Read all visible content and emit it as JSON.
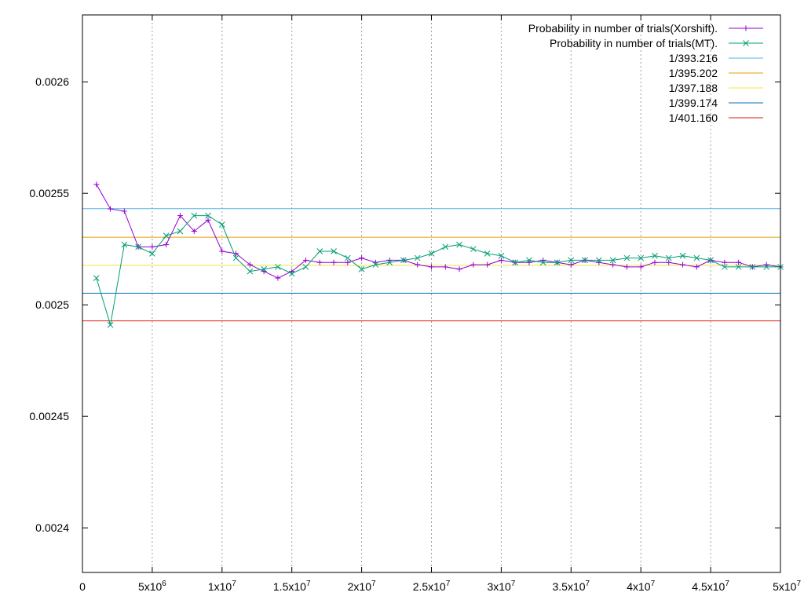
{
  "chart_data": {
    "type": "line",
    "title": "",
    "xlabel": "",
    "ylabel": "",
    "xlim": [
      0,
      50000000
    ],
    "ylim": [
      0.00238,
      0.00263
    ],
    "grid": "vertical dashed at x ticks",
    "legend_position": "top-right",
    "x_ticks": [
      {
        "value": 0,
        "base": "0",
        "exp": ""
      },
      {
        "value": 5000000,
        "base": "5x10",
        "exp": "6"
      },
      {
        "value": 10000000,
        "base": "1x10",
        "exp": "7"
      },
      {
        "value": 15000000,
        "base": "1.5x10",
        "exp": "7"
      },
      {
        "value": 20000000,
        "base": "2x10",
        "exp": "7"
      },
      {
        "value": 25000000,
        "base": "2.5x10",
        "exp": "7"
      },
      {
        "value": 30000000,
        "base": "3x10",
        "exp": "7"
      },
      {
        "value": 35000000,
        "base": "3.5x10",
        "exp": "7"
      },
      {
        "value": 40000000,
        "base": "4x10",
        "exp": "7"
      },
      {
        "value": 45000000,
        "base": "4.5x10",
        "exp": "7"
      },
      {
        "value": 50000000,
        "base": "5x10",
        "exp": "7"
      }
    ],
    "y_ticks": [
      {
        "value": 0.0024,
        "label": "0.0024"
      },
      {
        "value": 0.00245,
        "label": "0.00245"
      },
      {
        "value": 0.0025,
        "label": "0.0025"
      },
      {
        "value": 0.00255,
        "label": "0.00255"
      },
      {
        "value": 0.0026,
        "label": "0.0026"
      }
    ],
    "x": [
      1000000,
      2000000,
      3000000,
      4000000,
      5000000,
      6000000,
      7000000,
      8000000,
      9000000,
      10000000,
      11000000,
      12000000,
      13000000,
      14000000,
      15000000,
      16000000,
      17000000,
      18000000,
      19000000,
      20000000,
      21000000,
      22000000,
      23000000,
      24000000,
      25000000,
      26000000,
      27000000,
      28000000,
      29000000,
      30000000,
      31000000,
      32000000,
      33000000,
      34000000,
      35000000,
      36000000,
      37000000,
      38000000,
      39000000,
      40000000,
      41000000,
      42000000,
      43000000,
      44000000,
      45000000,
      46000000,
      47000000,
      48000000,
      49000000,
      50000000
    ],
    "series": [
      {
        "name": "Probability in number of trials(Xorshift).",
        "color": "#9400d3",
        "marker": "plus",
        "values": [
          0.002554,
          0.002543,
          0.002542,
          0.002526,
          0.002526,
          0.002527,
          0.00254,
          0.002533,
          0.002538,
          0.002524,
          0.002523,
          0.002518,
          0.002515,
          0.002512,
          0.002515,
          0.00252,
          0.002519,
          0.002519,
          0.002519,
          0.002521,
          0.002519,
          0.00252,
          0.00252,
          0.002518,
          0.002517,
          0.002517,
          0.002516,
          0.002518,
          0.002518,
          0.00252,
          0.002519,
          0.002519,
          0.00252,
          0.002519,
          0.002518,
          0.00252,
          0.002519,
          0.002518,
          0.002517,
          0.002517,
          0.002519,
          0.002519,
          0.002518,
          0.002517,
          0.00252,
          0.002519,
          0.002519,
          0.002517,
          0.002518,
          0.002517
        ]
      },
      {
        "name": "Probability in number of trials(MT).",
        "color": "#009e73",
        "marker": "x",
        "values": [
          0.002512,
          0.002491,
          0.002527,
          0.002526,
          0.002523,
          0.002531,
          0.002533,
          0.00254,
          0.00254,
          0.002536,
          0.002521,
          0.002515,
          0.002516,
          0.002517,
          0.002514,
          0.002517,
          0.002524,
          0.002524,
          0.002521,
          0.002516,
          0.002518,
          0.002519,
          0.00252,
          0.002521,
          0.002523,
          0.002526,
          0.002527,
          0.002525,
          0.002523,
          0.002522,
          0.002519,
          0.00252,
          0.002519,
          0.002519,
          0.00252,
          0.00252,
          0.00252,
          0.00252,
          0.002521,
          0.002521,
          0.002522,
          0.002521,
          0.002522,
          0.002521,
          0.00252,
          0.002517,
          0.002517,
          0.002517,
          0.002517,
          0.002517
        ]
      }
    ],
    "reference_lines": [
      {
        "label": "1/393.216",
        "color": "#56b4e9",
        "value": 0.0025431
      },
      {
        "label": "1/395.202",
        "color": "#e69f00",
        "value": 0.0025303
      },
      {
        "label": "1/397.188",
        "color": "#f0e442",
        "value": 0.0025177
      },
      {
        "label": "1/399.174",
        "color": "#0072b2",
        "value": 0.0025052
      },
      {
        "label": "1/401.160",
        "color": "#e51e10",
        "value": 0.0024928
      }
    ]
  }
}
